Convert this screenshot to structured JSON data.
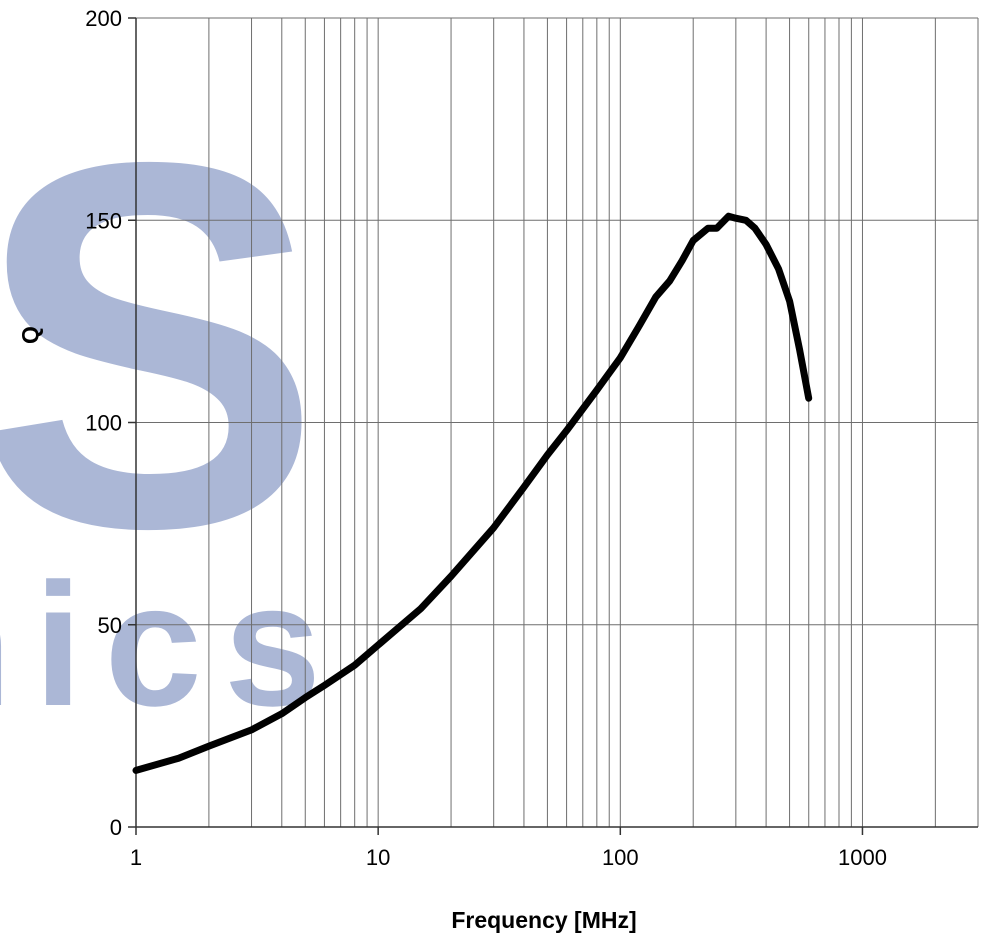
{
  "chart_data": {
    "type": "line",
    "title": "",
    "xlabel": "Frequency [MHz]",
    "ylabel": "Q",
    "x_scale": "log",
    "xlim": [
      1,
      3000
    ],
    "ylim": [
      0,
      200
    ],
    "grid": true,
    "x_tick_labels": [
      "1",
      "10",
      "100",
      "1000"
    ],
    "y_tick_labels": [
      "0",
      "50",
      "100",
      "150",
      "200"
    ],
    "series": [
      {
        "color": "#000000",
        "points": [
          [
            1,
            14
          ],
          [
            1.5,
            17
          ],
          [
            2,
            20
          ],
          [
            3,
            24
          ],
          [
            4,
            28
          ],
          [
            5,
            32
          ],
          [
            6,
            35
          ],
          [
            8,
            40
          ],
          [
            10,
            45
          ],
          [
            15,
            54
          ],
          [
            20,
            62
          ],
          [
            30,
            74
          ],
          [
            40,
            84
          ],
          [
            50,
            92
          ],
          [
            60,
            98
          ],
          [
            80,
            108
          ],
          [
            100,
            116
          ],
          [
            120,
            124
          ],
          [
            140,
            131
          ],
          [
            160,
            135
          ],
          [
            180,
            140
          ],
          [
            200,
            145
          ],
          [
            230,
            148
          ],
          [
            250,
            148
          ],
          [
            280,
            151
          ],
          [
            300,
            150.5
          ],
          [
            330,
            150
          ],
          [
            360,
            148
          ],
          [
            400,
            144
          ],
          [
            450,
            138
          ],
          [
            500,
            130
          ],
          [
            550,
            118
          ],
          [
            600,
            106
          ]
        ]
      }
    ]
  },
  "watermark": {
    "letter": "S",
    "text": "nics",
    "color": "#8f9fc9"
  }
}
